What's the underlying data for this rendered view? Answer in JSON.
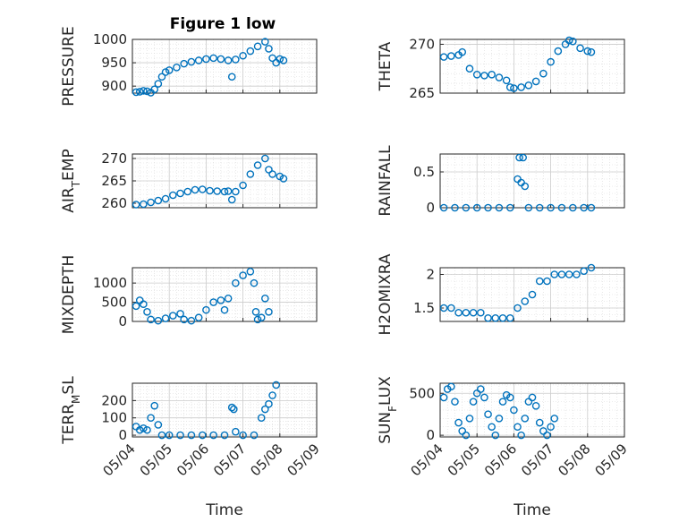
{
  "chart_data": [
    {
      "type": "scatter",
      "title": "Figure 1 low",
      "ylabel": "PRESSURE",
      "ylim": [
        885,
        1000
      ],
      "yticks": [
        900,
        950,
        1000
      ],
      "xlim": [
        "05/04",
        "05/09"
      ],
      "grid": "on",
      "series": [
        {
          "values": [
            [
              4.1,
              887
            ],
            [
              4.2,
              888
            ],
            [
              4.3,
              890
            ],
            [
              4.4,
              889
            ],
            [
              4.5,
              886
            ],
            [
              4.6,
              893
            ],
            [
              4.7,
              905
            ],
            [
              4.8,
              920
            ],
            [
              4.9,
              930
            ],
            [
              5.0,
              934
            ],
            [
              5.2,
              940
            ],
            [
              5.4,
              948
            ],
            [
              5.6,
              952
            ],
            [
              5.8,
              955
            ],
            [
              6.0,
              958
            ],
            [
              6.2,
              960
            ],
            [
              6.4,
              958
            ],
            [
              6.6,
              955
            ],
            [
              6.7,
              920
            ],
            [
              6.8,
              957
            ],
            [
              7.0,
              965
            ],
            [
              7.2,
              975
            ],
            [
              7.4,
              985
            ],
            [
              7.6,
              995
            ],
            [
              7.7,
              980
            ],
            [
              7.8,
              960
            ],
            [
              7.9,
              950
            ],
            [
              8.0,
              958
            ],
            [
              8.1,
              955
            ]
          ]
        }
      ]
    },
    {
      "type": "scatter",
      "ylabel": "THETA",
      "ylim": [
        265,
        270.5
      ],
      "yticks": [
        265,
        270
      ],
      "xlim": [
        "05/04",
        "05/09"
      ],
      "grid": "on",
      "series": [
        {
          "values": [
            [
              4.1,
              268.7
            ],
            [
              4.3,
              268.8
            ],
            [
              4.5,
              268.9
            ],
            [
              4.6,
              269.2
            ],
            [
              4.8,
              267.5
            ],
            [
              5.0,
              266.9
            ],
            [
              5.2,
              266.8
            ],
            [
              5.4,
              266.9
            ],
            [
              5.6,
              266.6
            ],
            [
              5.8,
              266.3
            ],
            [
              5.9,
              265.6
            ],
            [
              6.0,
              265.5
            ],
            [
              6.2,
              265.6
            ],
            [
              6.4,
              265.8
            ],
            [
              6.6,
              266.2
            ],
            [
              6.8,
              267.0
            ],
            [
              7.0,
              268.2
            ],
            [
              7.2,
              269.3
            ],
            [
              7.4,
              270.0
            ],
            [
              7.5,
              270.4
            ],
            [
              7.6,
              270.3
            ],
            [
              7.8,
              269.6
            ],
            [
              8.0,
              269.3
            ],
            [
              8.1,
              269.2
            ]
          ]
        }
      ]
    },
    {
      "type": "scatter",
      "ylabel": "AIR_TEMP",
      "ylim": [
        259,
        271
      ],
      "yticks": [
        260,
        265,
        270
      ],
      "xlim": [
        "05/04",
        "05/09"
      ],
      "grid": "on",
      "series": [
        {
          "values": [
            [
              4.1,
              259.7
            ],
            [
              4.3,
              259.8
            ],
            [
              4.5,
              260.2
            ],
            [
              4.7,
              260.6
            ],
            [
              4.9,
              261.0
            ],
            [
              5.1,
              261.8
            ],
            [
              5.3,
              262.2
            ],
            [
              5.5,
              262.6
            ],
            [
              5.7,
              263.0
            ],
            [
              5.9,
              263.1
            ],
            [
              6.1,
              262.8
            ],
            [
              6.3,
              262.7
            ],
            [
              6.5,
              262.6
            ],
            [
              6.6,
              262.7
            ],
            [
              6.7,
              260.8
            ],
            [
              6.8,
              262.6
            ],
            [
              7.0,
              264.0
            ],
            [
              7.2,
              266.5
            ],
            [
              7.4,
              268.5
            ],
            [
              7.6,
              270.0
            ],
            [
              7.7,
              267.5
            ],
            [
              7.8,
              266.5
            ],
            [
              8.0,
              266.0
            ],
            [
              8.1,
              265.5
            ]
          ]
        }
      ]
    },
    {
      "type": "scatter",
      "ylabel": "RAINFALL",
      "ylim": [
        0,
        0.75
      ],
      "yticks": [
        0,
        0.5
      ],
      "xlim": [
        "05/04",
        "05/09"
      ],
      "grid": "on",
      "series": [
        {
          "values": [
            [
              4.1,
              0
            ],
            [
              4.4,
              0
            ],
            [
              4.7,
              0
            ],
            [
              5.0,
              0
            ],
            [
              5.3,
              0
            ],
            [
              5.6,
              0
            ],
            [
              5.9,
              0
            ],
            [
              6.1,
              0.4
            ],
            [
              6.15,
              0.7
            ],
            [
              6.2,
              0.35
            ],
            [
              6.25,
              0.7
            ],
            [
              6.3,
              0.3
            ],
            [
              6.4,
              0
            ],
            [
              6.7,
              0
            ],
            [
              7.0,
              0
            ],
            [
              7.3,
              0
            ],
            [
              7.6,
              0
            ],
            [
              7.9,
              0
            ],
            [
              8.1,
              0
            ]
          ]
        }
      ]
    },
    {
      "type": "scatter",
      "ylabel": "MIXDEPTH",
      "ylim": [
        0,
        1400
      ],
      "yticks": [
        0,
        500,
        1000
      ],
      "xlim": [
        "05/04",
        "05/09"
      ],
      "grid": "on",
      "series": [
        {
          "values": [
            [
              4.1,
              400
            ],
            [
              4.2,
              550
            ],
            [
              4.3,
              450
            ],
            [
              4.4,
              250
            ],
            [
              4.5,
              50
            ],
            [
              4.7,
              20
            ],
            [
              4.9,
              80
            ],
            [
              5.1,
              150
            ],
            [
              5.3,
              200
            ],
            [
              5.4,
              50
            ],
            [
              5.6,
              20
            ],
            [
              5.8,
              100
            ],
            [
              6.0,
              300
            ],
            [
              6.2,
              500
            ],
            [
              6.4,
              550
            ],
            [
              6.5,
              300
            ],
            [
              6.6,
              600
            ],
            [
              6.8,
              1000
            ],
            [
              7.0,
              1200
            ],
            [
              7.2,
              1300
            ],
            [
              7.3,
              1000
            ],
            [
              7.35,
              250
            ],
            [
              7.4,
              50
            ],
            [
              7.5,
              100
            ],
            [
              7.6,
              600
            ],
            [
              7.7,
              250
            ]
          ]
        }
      ]
    },
    {
      "type": "scatter",
      "ylabel": "H2OMIXRA",
      "ylim": [
        1.3,
        2.1
      ],
      "yticks": [
        1.5,
        2
      ],
      "xlim": [
        "05/04",
        "05/09"
      ],
      "grid": "on",
      "series": [
        {
          "values": [
            [
              4.1,
              1.5
            ],
            [
              4.3,
              1.5
            ],
            [
              4.5,
              1.43
            ],
            [
              4.7,
              1.43
            ],
            [
              4.9,
              1.43
            ],
            [
              5.1,
              1.43
            ],
            [
              5.3,
              1.35
            ],
            [
              5.5,
              1.35
            ],
            [
              5.7,
              1.35
            ],
            [
              5.9,
              1.35
            ],
            [
              6.1,
              1.5
            ],
            [
              6.3,
              1.6
            ],
            [
              6.5,
              1.7
            ],
            [
              6.7,
              1.9
            ],
            [
              6.9,
              1.9
            ],
            [
              7.1,
              2.0
            ],
            [
              7.3,
              2.0
            ],
            [
              7.5,
              2.0
            ],
            [
              7.7,
              2.0
            ],
            [
              7.9,
              2.05
            ],
            [
              8.1,
              2.1
            ]
          ]
        }
      ]
    },
    {
      "type": "scatter",
      "ylabel": "TERR_MSL",
      "ylim": [
        -10,
        300
      ],
      "yticks": [
        0,
        100,
        200
      ],
      "xlim": [
        "05/04",
        "05/09"
      ],
      "grid": "on",
      "series": [
        {
          "values": [
            [
              4.1,
              50
            ],
            [
              4.2,
              30
            ],
            [
              4.3,
              40
            ],
            [
              4.4,
              30
            ],
            [
              4.5,
              100
            ],
            [
              4.6,
              170
            ],
            [
              4.7,
              60
            ],
            [
              4.8,
              0
            ],
            [
              5.0,
              0
            ],
            [
              5.3,
              0
            ],
            [
              5.6,
              0
            ],
            [
              5.9,
              0
            ],
            [
              6.2,
              0
            ],
            [
              6.5,
              0
            ],
            [
              6.7,
              160
            ],
            [
              6.75,
              150
            ],
            [
              6.8,
              20
            ],
            [
              7.0,
              0
            ],
            [
              7.3,
              0
            ],
            [
              7.5,
              100
            ],
            [
              7.6,
              150
            ],
            [
              7.7,
              180
            ],
            [
              7.8,
              230
            ],
            [
              7.9,
              290
            ]
          ]
        }
      ]
    },
    {
      "type": "scatter",
      "ylabel": "SUN_FLUX",
      "ylim": [
        -20,
        620
      ],
      "yticks": [
        0,
        500
      ],
      "xlim": [
        "05/04",
        "05/09"
      ],
      "grid": "on",
      "series": [
        {
          "values": [
            [
              4.1,
              450
            ],
            [
              4.2,
              550
            ],
            [
              4.3,
              580
            ],
            [
              4.4,
              400
            ],
            [
              4.5,
              150
            ],
            [
              4.6,
              50
            ],
            [
              4.7,
              0
            ],
            [
              4.8,
              200
            ],
            [
              4.9,
              400
            ],
            [
              5.0,
              500
            ],
            [
              5.1,
              550
            ],
            [
              5.2,
              450
            ],
            [
              5.3,
              250
            ],
            [
              5.4,
              100
            ],
            [
              5.5,
              0
            ],
            [
              5.6,
              200
            ],
            [
              5.7,
              400
            ],
            [
              5.8,
              480
            ],
            [
              5.9,
              450
            ],
            [
              6.0,
              300
            ],
            [
              6.1,
              100
            ],
            [
              6.2,
              0
            ],
            [
              6.3,
              200
            ],
            [
              6.4,
              400
            ],
            [
              6.5,
              450
            ],
            [
              6.6,
              350
            ],
            [
              6.7,
              150
            ],
            [
              6.8,
              50
            ],
            [
              6.9,
              0
            ],
            [
              7.0,
              100
            ],
            [
              7.1,
              200
            ]
          ]
        }
      ]
    }
  ],
  "x_tick_labels": [
    "05/04",
    "05/05",
    "05/06",
    "05/07",
    "05/08",
    "05/09"
  ],
  "xlabel": "Time",
  "colors": {
    "marker": "#0072BD",
    "grid": "#d9d9d9",
    "axis": "#262626"
  }
}
